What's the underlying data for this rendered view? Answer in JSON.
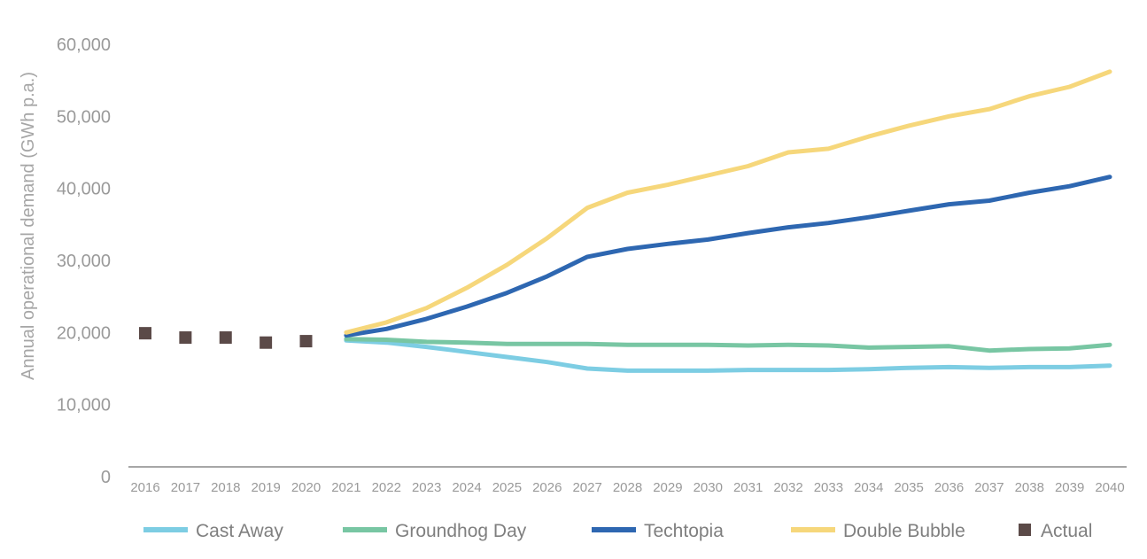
{
  "chart_data": {
    "type": "line",
    "title": "",
    "xlabel": "",
    "ylabel": "Annual operational demand (GWh p.a.)",
    "ylim": [
      0,
      60000
    ],
    "yticks": [
      0,
      10000,
      20000,
      30000,
      40000,
      50000,
      60000
    ],
    "ytick_labels": [
      "0",
      "10,000",
      "20,000",
      "30,000",
      "40,000",
      "50,000",
      "60,000"
    ],
    "grid": false,
    "legend_position": "bottom",
    "categories": [
      "2016",
      "2017",
      "2018",
      "2019",
      "2020",
      "2021",
      "2022",
      "2023",
      "2024",
      "2025",
      "2026",
      "2027",
      "2028",
      "2029",
      "2030",
      "2031",
      "2032",
      "2033",
      "2034",
      "2035",
      "2036",
      "2037",
      "2038",
      "2039",
      "2040"
    ],
    "series": [
      {
        "name": "Cast Away",
        "style": "line",
        "color": "#7dcde3",
        "x": [
          "2021",
          "2022",
          "2023",
          "2024",
          "2025",
          "2026",
          "2027",
          "2028",
          "2029",
          "2030",
          "2031",
          "2032",
          "2033",
          "2034",
          "2035",
          "2036",
          "2037",
          "2038",
          "2039",
          "2040"
        ],
        "values": [
          18900,
          18600,
          18000,
          17300,
          16600,
          15900,
          15000,
          14700,
          14700,
          14700,
          14800,
          14800,
          14800,
          14900,
          15100,
          15200,
          15100,
          15200,
          15200,
          15400
        ]
      },
      {
        "name": "Groundhog Day",
        "style": "line",
        "color": "#78c6a3",
        "x": [
          "2021",
          "2022",
          "2023",
          "2024",
          "2025",
          "2026",
          "2027",
          "2028",
          "2029",
          "2030",
          "2031",
          "2032",
          "2033",
          "2034",
          "2035",
          "2036",
          "2037",
          "2038",
          "2039",
          "2040"
        ],
        "values": [
          19100,
          19000,
          18700,
          18600,
          18400,
          18400,
          18400,
          18300,
          18300,
          18300,
          18200,
          18300,
          18200,
          17900,
          18000,
          18100,
          17500,
          17700,
          17800,
          18300
        ]
      },
      {
        "name": "Techtopia",
        "style": "line",
        "color": "#2e67b1",
        "x": [
          "2021",
          "2022",
          "2023",
          "2024",
          "2025",
          "2026",
          "2027",
          "2028",
          "2029",
          "2030",
          "2031",
          "2032",
          "2033",
          "2034",
          "2035",
          "2036",
          "2037",
          "2038",
          "2039",
          "2040"
        ],
        "values": [
          19600,
          20500,
          21900,
          23600,
          25500,
          27800,
          30500,
          31600,
          32300,
          32900,
          33800,
          34600,
          35200,
          36000,
          36900,
          37800,
          38300,
          39400,
          40300,
          41600
        ]
      },
      {
        "name": "Double Bubble",
        "style": "line",
        "color": "#f6d77b",
        "x": [
          "2021",
          "2022",
          "2023",
          "2024",
          "2025",
          "2026",
          "2027",
          "2028",
          "2029",
          "2030",
          "2031",
          "2032",
          "2033",
          "2034",
          "2035",
          "2036",
          "2037",
          "2038",
          "2039",
          "2040"
        ],
        "values": [
          20000,
          21400,
          23400,
          26200,
          29400,
          33100,
          37300,
          39400,
          40500,
          41800,
          43100,
          45000,
          45500,
          47200,
          48700,
          50000,
          51000,
          52800,
          54100,
          56200
        ]
      },
      {
        "name": "Actual",
        "style": "marker",
        "color": "#5b4a48",
        "x": [
          "2016",
          "2017",
          "2018",
          "2019",
          "2020"
        ],
        "values": [
          19900,
          19300,
          19300,
          18600,
          18800
        ]
      }
    ]
  }
}
